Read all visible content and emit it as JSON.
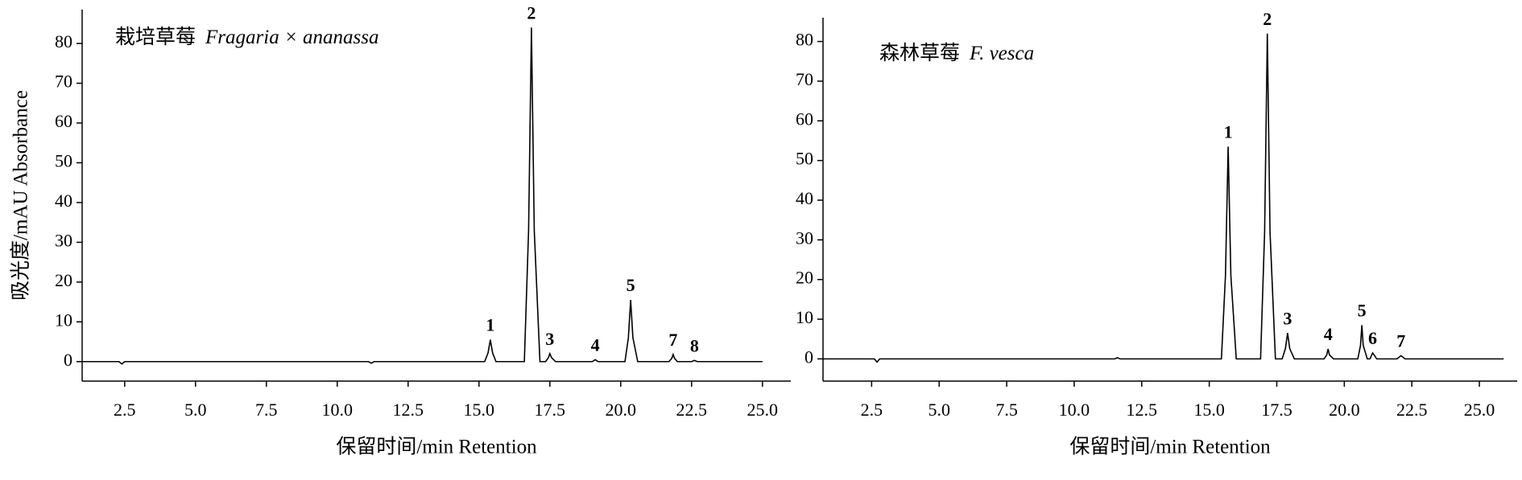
{
  "chart_data": [
    {
      "type": "line",
      "title": "栽培草莓",
      "species": "Fragaria × ananassa",
      "xlabel": "保留时间/min  Retention",
      "ylabel": "吸光度/mAU  Absorbance",
      "xlim": [
        1.0,
        26.0
      ],
      "ylim": [
        -4.9,
        88.5
      ],
      "xticks": [
        2.5,
        5.0,
        7.5,
        10.0,
        12.5,
        15.0,
        17.5,
        20.0,
        22.5,
        25.0
      ],
      "xtick_labels": [
        "2.5",
        "5.0",
        "7.5",
        "10.0",
        "12.5",
        "15.0",
        "17.5",
        "20.0",
        "22.5",
        "25.0"
      ],
      "yticks": [
        0,
        10,
        20,
        30,
        40,
        50,
        60,
        70,
        80
      ],
      "x": [
        1.0,
        2.3,
        2.4,
        2.5,
        11.1,
        11.2,
        11.3,
        15.2,
        15.32,
        15.4,
        15.48,
        15.6,
        16.6,
        16.75,
        16.85,
        16.95,
        17.15,
        17.35,
        17.45,
        17.5,
        17.56,
        17.7,
        19.0,
        19.1,
        19.2,
        20.15,
        20.27,
        20.35,
        20.43,
        20.6,
        21.7,
        21.8,
        21.85,
        21.9,
        22.0,
        22.5,
        22.6,
        22.7,
        25.0
      ],
      "series": [
        {
          "color": "#000000",
          "values": [
            0,
            0,
            -0.6,
            0,
            0,
            -0.4,
            0,
            0,
            2.2,
            5.5,
            2.2,
            0,
            0,
            33,
            84,
            33,
            0,
            0,
            1,
            2,
            1,
            0,
            0,
            0.5,
            0,
            0,
            6,
            15.5,
            6,
            0,
            0,
            0.8,
            1.8,
            0.8,
            0,
            0,
            0.3,
            0,
            0
          ]
        }
      ],
      "annotations": [
        {
          "text": "1",
          "x": 15.4,
          "y": 5.5
        },
        {
          "text": "2",
          "x": 16.85,
          "y": 84
        },
        {
          "text": "3",
          "x": 17.5,
          "y": 2
        },
        {
          "text": "4",
          "x": 19.1,
          "y": 0.5
        },
        {
          "text": "5",
          "x": 20.35,
          "y": 15.5
        },
        {
          "text": "7",
          "x": 21.85,
          "y": 1.8
        },
        {
          "text": "8",
          "x": 22.6,
          "y": 0.3
        }
      ]
    },
    {
      "type": "line",
      "title": "森林草莓",
      "species": "F. vesca",
      "xlabel": "保留时间/min  Retention",
      "xlim": [
        0.7,
        26.4
      ],
      "ylim": [
        -5.6,
        86.0
      ],
      "xticks": [
        2.5,
        5.0,
        7.5,
        10.0,
        12.5,
        15.0,
        17.5,
        20.0,
        22.5,
        25.0
      ],
      "xtick_labels": [
        "2.5",
        "5.0",
        "7.5",
        "10.0",
        "12.5",
        "15.0",
        "17.5",
        "20.0",
        "22.5",
        "25.0"
      ],
      "yticks": [
        0,
        10,
        20,
        30,
        40,
        50,
        60,
        70,
        80
      ],
      "x": [
        0.7,
        2.6,
        2.7,
        2.8,
        11.5,
        11.6,
        11.7,
        15.45,
        15.6,
        15.7,
        15.8,
        16.0,
        16.9,
        17.05,
        17.15,
        17.25,
        17.45,
        17.7,
        17.82,
        17.9,
        17.98,
        18.15,
        19.25,
        19.35,
        19.4,
        19.45,
        19.6,
        20.5,
        20.6,
        20.65,
        20.7,
        20.85,
        20.95,
        21.05,
        21.2,
        21.95,
        22.1,
        22.25,
        25.9
      ],
      "series": [
        {
          "color": "#000000",
          "values": [
            0,
            0,
            -0.8,
            0,
            0,
            0.3,
            0,
            0,
            21,
            53.5,
            21,
            0,
            0,
            32,
            82,
            32,
            0,
            0,
            2.6,
            6.5,
            2.6,
            0,
            0,
            1,
            2.5,
            1,
            0,
            0,
            3.4,
            8.5,
            3.4,
            0,
            0,
            1.5,
            0,
            0,
            0.8,
            0,
            0
          ]
        }
      ],
      "annotations": [
        {
          "text": "1",
          "x": 15.7,
          "y": 53.5
        },
        {
          "text": "2",
          "x": 17.15,
          "y": 82
        },
        {
          "text": "3",
          "x": 17.9,
          "y": 6.5
        },
        {
          "text": "4",
          "x": 19.4,
          "y": 2.5
        },
        {
          "text": "5",
          "x": 20.65,
          "y": 8.5
        },
        {
          "text": "6",
          "x": 21.05,
          "y": 1.5
        },
        {
          "text": "7",
          "x": 22.1,
          "y": 0.8
        }
      ]
    }
  ]
}
